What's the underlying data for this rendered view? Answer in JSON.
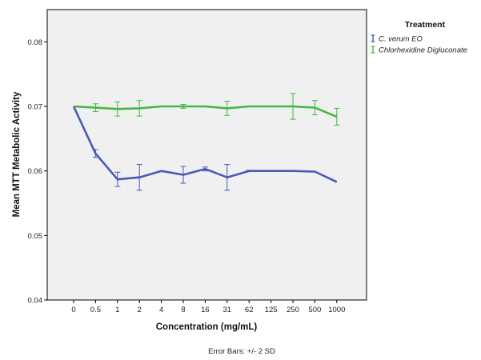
{
  "chart_data": {
    "type": "line",
    "xlabel": "Concentration (mg/mL)",
    "ylabel": "Mean MTT Metabolic Activity",
    "categories": [
      "0",
      "0.5",
      "1",
      "2",
      "4",
      "8",
      "16",
      "31",
      "62",
      "125",
      "250",
      "500",
      "1000"
    ],
    "ylim": [
      0.04,
      0.085
    ],
    "yticks": [
      "0.04",
      "0.05",
      "0.06",
      "0.07",
      "0.08"
    ],
    "grid": false,
    "legend": {
      "title": "Treatment",
      "placement": "right",
      "entries": [
        "C. verum EO",
        "Chlorhexidine Digluconate"
      ]
    },
    "footnote": "Error Bars: +/- 2 SD",
    "series": [
      {
        "name": "C. verum EO",
        "color": "#4859b8",
        "values": [
          0.07,
          0.0627,
          0.0587,
          0.059,
          0.06,
          0.0594,
          0.0603,
          0.059,
          0.06,
          null,
          0.06,
          0.0599,
          0.0583
        ],
        "error": [
          0,
          0.0006,
          0.0011,
          0.002,
          0,
          0.0013,
          0.0003,
          0.002,
          0.0001,
          null,
          0,
          0,
          0
        ]
      },
      {
        "name": "Chlorhexidine Digluconate",
        "color": "#44b741",
        "values": [
          0.07,
          0.0698,
          0.0696,
          0.0697,
          0.07,
          0.07,
          0.07,
          0.0697,
          0.07,
          null,
          0.07,
          0.0698,
          0.0684
        ],
        "error": [
          0,
          0.0006,
          0.0011,
          0.0012,
          0,
          0.0003,
          0,
          0.0011,
          0,
          null,
          0.002,
          0.0011,
          0.0013
        ]
      }
    ]
  }
}
